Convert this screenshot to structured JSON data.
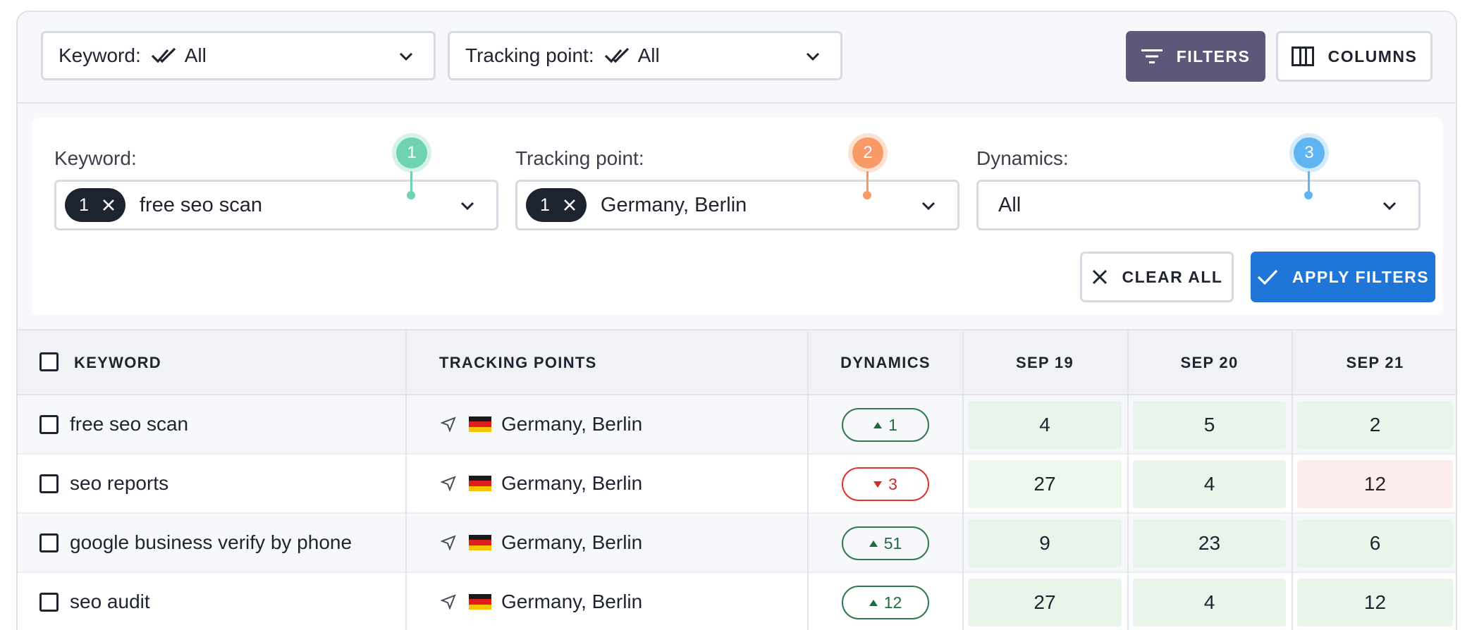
{
  "topbar": {
    "keyword_select": {
      "label": "Keyword:",
      "value": "All"
    },
    "tracking_select": {
      "label": "Tracking point:",
      "value": "All"
    },
    "filters_button": "FILTERS",
    "columns_button": "COLUMNS"
  },
  "filters": {
    "keyword": {
      "label": "Keyword:",
      "count": "1",
      "value": "free seo scan",
      "marker": "1",
      "marker_color": "#6fd3b1"
    },
    "tracking": {
      "label": "Tracking point:",
      "count": "1",
      "value": "Germany, Berlin",
      "marker": "2",
      "marker_color": "#f79a66"
    },
    "dynamics": {
      "label": "Dynamics:",
      "value": "All",
      "marker": "3",
      "marker_color": "#5eb5f2"
    },
    "clear_button": "CLEAR ALL",
    "apply_button": "APPLY FILTERS"
  },
  "table": {
    "headers": {
      "keyword": "KEYWORD",
      "tracking": "TRACKING POINTS",
      "dynamics": "DYNAMICS",
      "d1": "SEP 19",
      "d2": "SEP 20",
      "d3": "SEP 21"
    },
    "rows": [
      {
        "keyword": "free seo scan",
        "tracking": "Germany, Berlin",
        "dynamics": "1",
        "direction": "up",
        "d1": "4",
        "d2": "5",
        "d3": "2"
      },
      {
        "keyword": "seo reports",
        "tracking": "Germany, Berlin",
        "dynamics": "3",
        "direction": "down",
        "d1": "27",
        "d2": "4",
        "d3": "12"
      },
      {
        "keyword": "google business verify by phone",
        "tracking": "Germany, Berlin",
        "dynamics": "51",
        "direction": "up",
        "d1": "9",
        "d2": "23",
        "d3": "6"
      },
      {
        "keyword": "seo audit",
        "tracking": "Germany, Berlin",
        "dynamics": "12",
        "direction": "up",
        "d1": "27",
        "d2": "4",
        "d3": "12"
      }
    ]
  },
  "colors": {
    "filters_button": "#5e5779",
    "apply_button": "#1f76d8",
    "up": "#1e6b40",
    "down": "#d32a25"
  },
  "icons": {
    "double-check": "double-check-icon",
    "flag": "germany-flag-icon",
    "location": "navigation-arrow-icon"
  }
}
